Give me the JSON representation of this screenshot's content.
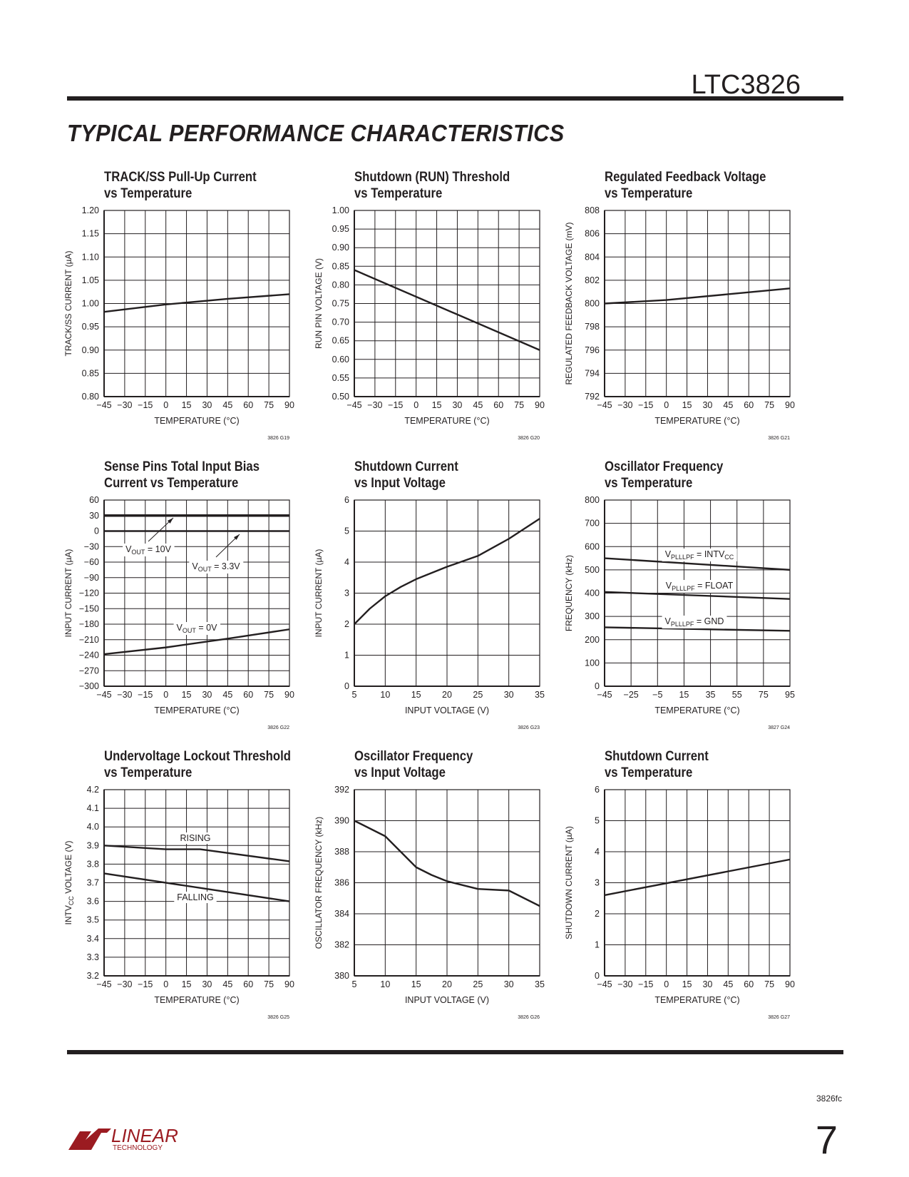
{
  "header": {
    "part_number": "LTC3826",
    "section_title": "TYPICAL PERFORMANCE CHARACTERISTICS"
  },
  "footer": {
    "doc_code": "3826fc",
    "page_number": "7",
    "logo_text": "LINEAR",
    "logo_subtext": "TECHNOLOGY",
    "logo_color": "#9b1b21"
  },
  "chart_data": [
    {
      "type": "line",
      "title": [
        "TRACK/SS Pull-Up Current",
        "vs Temperature"
      ],
      "xlabel": "TEMPERATURE (°C)",
      "ylabel": [
        {
          "t": "TRACK/SS CURRENT (µA)"
        }
      ],
      "figure_code": "3826 G19",
      "xlim": [
        -45,
        90
      ],
      "ylim": [
        0.8,
        1.2
      ],
      "xticks": [
        -45,
        -30,
        -15,
        0,
        15,
        30,
        45,
        60,
        75,
        90
      ],
      "yticks": [
        0.8,
        0.85,
        0.9,
        0.95,
        1.0,
        1.05,
        1.1,
        1.15,
        1.2
      ],
      "ydec": 2,
      "grid": true,
      "series": [
        {
          "name": "",
          "x": [
            -45,
            0,
            45,
            90
          ],
          "y": [
            0.982,
            0.998,
            1.01,
            1.02
          ]
        }
      ],
      "annotations": []
    },
    {
      "type": "line",
      "title": [
        "Shutdown (RUN) Threshold",
        "vs Temperature"
      ],
      "xlabel": "TEMPERATURE (°C)",
      "ylabel": [
        {
          "t": "RUN PIN VOLTAGE (V)"
        }
      ],
      "figure_code": "3826 G20",
      "xlim": [
        -45,
        90
      ],
      "ylim": [
        0.5,
        1.0
      ],
      "xticks": [
        -45,
        -30,
        -15,
        0,
        15,
        30,
        45,
        60,
        75,
        90
      ],
      "yticks": [
        0.5,
        0.55,
        0.6,
        0.65,
        0.7,
        0.75,
        0.8,
        0.85,
        0.9,
        0.95,
        1.0
      ],
      "ydec": 2,
      "grid": true,
      "series": [
        {
          "name": "",
          "x": [
            -45,
            90
          ],
          "y": [
            0.84,
            0.625
          ]
        }
      ],
      "annotations": []
    },
    {
      "type": "line",
      "title": [
        "Regulated Feedback Voltage",
        "vs Temperature"
      ],
      "xlabel": "TEMPERATURE (°C)",
      "ylabel": [
        {
          "t": "REGULATED FEEDBACK VOLTAGE (mV)"
        }
      ],
      "figure_code": "3826 G21",
      "xlim": [
        -45,
        90
      ],
      "ylim": [
        792,
        808
      ],
      "xticks": [
        -45,
        -30,
        -15,
        0,
        15,
        30,
        45,
        60,
        75,
        90
      ],
      "yticks": [
        792,
        794,
        796,
        798,
        800,
        802,
        804,
        806,
        808
      ],
      "ydec": 0,
      "grid": true,
      "series": [
        {
          "name": "",
          "x": [
            -45,
            0,
            45,
            90
          ],
          "y": [
            800,
            800.3,
            800.8,
            801.3
          ]
        }
      ],
      "annotations": []
    },
    {
      "type": "line",
      "title": [
        "Sense Pins Total Input Bias",
        "Current vs Temperature"
      ],
      "xlabel": "TEMPERATURE (°C)",
      "ylabel": [
        {
          "t": "INPUT CURRENT (µA)"
        }
      ],
      "figure_code": "3826 G22",
      "xlim": [
        -45,
        90
      ],
      "ylim": [
        -300,
        60
      ],
      "xticks": [
        -45,
        -30,
        -15,
        0,
        15,
        30,
        45,
        60,
        75,
        90
      ],
      "yticks": [
        -300,
        -270,
        -240,
        -210,
        -180,
        -150,
        -120,
        -90,
        -60,
        -30,
        0,
        30,
        60
      ],
      "ydec": 0,
      "grid": true,
      "series": [
        {
          "name": "VOUT = 10V",
          "x": [
            -45,
            90
          ],
          "y": [
            30,
            30
          ]
        },
        {
          "name": "VOUT = 3.3V",
          "x": [
            -45,
            90
          ],
          "y": [
            0,
            0
          ]
        },
        {
          "name": "VOUT = 0V",
          "x": [
            -45,
            0,
            45,
            90
          ],
          "y": [
            -238,
            -225,
            -208,
            -190
          ]
        }
      ],
      "annotations": [
        [
          {
            "t": "V"
          },
          {
            "t": "OUT",
            "sub": true
          },
          {
            "t": " = 10V"
          }
        ],
        [
          {
            "t": "V"
          },
          {
            "t": "OUT",
            "sub": true
          },
          {
            "t": " = 3.3V"
          }
        ],
        [
          {
            "t": "V"
          },
          {
            "t": "OUT",
            "sub": true
          },
          {
            "t": " = 0V"
          }
        ]
      ]
    },
    {
      "type": "line",
      "title": [
        "Shutdown Current",
        "vs Input Voltage"
      ],
      "xlabel": "INPUT VOLTAGE (V)",
      "ylabel": [
        {
          "t": "INPUT CURRENT (µA)"
        }
      ],
      "figure_code": "3826 G23",
      "xlim": [
        5,
        35
      ],
      "ylim": [
        0,
        6
      ],
      "xticks": [
        5,
        10,
        15,
        20,
        25,
        30,
        35
      ],
      "yticks": [
        0,
        1,
        2,
        3,
        4,
        5,
        6
      ],
      "ydec": 0,
      "grid": true,
      "series": [
        {
          "name": "",
          "x": [
            5,
            7.5,
            10,
            12.5,
            15,
            20,
            25,
            30,
            35
          ],
          "y": [
            2,
            2.5,
            2.9,
            3.2,
            3.45,
            3.85,
            4.2,
            4.75,
            5.4
          ]
        }
      ],
      "annotations": []
    },
    {
      "type": "line",
      "title": [
        "Oscillator Frequency",
        "vs Temperature"
      ],
      "xlabel": "TEMPERATURE (°C)",
      "ylabel": [
        {
          "t": "FREQUENCY (kHz)"
        }
      ],
      "figure_code": "3827 G24",
      "xlim": [
        -45,
        95
      ],
      "ylim": [
        0,
        800
      ],
      "xticks": [
        -45,
        -25,
        -5,
        15,
        35,
        55,
        75,
        95
      ],
      "yticks": [
        0,
        100,
        200,
        300,
        400,
        500,
        600,
        700,
        800
      ],
      "ydec": 0,
      "grid": true,
      "series": [
        {
          "name": "VPLLLPF = INTVCC",
          "x": [
            -45,
            95
          ],
          "y": [
            550,
            500
          ]
        },
        {
          "name": "VPLLLPF = FLOAT",
          "x": [
            -45,
            95
          ],
          "y": [
            405,
            375
          ]
        },
        {
          "name": "VPLLLPF = GND",
          "x": [
            -45,
            95
          ],
          "y": [
            253,
            238
          ]
        }
      ],
      "annotations": [
        [
          {
            "t": "V"
          },
          {
            "t": "PLLLPF",
            "sub": true
          },
          {
            "t": " = INTV"
          },
          {
            "t": "CC",
            "sub": true
          }
        ],
        [
          {
            "t": "V"
          },
          {
            "t": "PLLLPF",
            "sub": true
          },
          {
            "t": " = FLOAT"
          }
        ],
        [
          {
            "t": "V"
          },
          {
            "t": "PLLLPF",
            "sub": true
          },
          {
            "t": " = GND"
          }
        ]
      ]
    },
    {
      "type": "line",
      "title": [
        "Undervoltage Lockout Threshold",
        "vs Temperature"
      ],
      "xlabel": "TEMPERATURE (°C)",
      "ylabel": [
        {
          "t": "INTV"
        },
        {
          "t": "CC",
          "sub": true
        },
        {
          "t": " VOLTAGE (V)"
        }
      ],
      "figure_code": "3826 G25",
      "xlim": [
        -45,
        90
      ],
      "ylim": [
        3.2,
        4.2
      ],
      "xticks": [
        -45,
        -30,
        -15,
        0,
        15,
        30,
        45,
        60,
        75,
        90
      ],
      "yticks": [
        3.2,
        3.3,
        3.4,
        3.5,
        3.6,
        3.7,
        3.8,
        3.9,
        4.0,
        4.1,
        4.2
      ],
      "ydec": 1,
      "grid": true,
      "series": [
        {
          "name": "RISING",
          "x": [
            -45,
            0,
            25,
            90
          ],
          "y": [
            3.9,
            3.88,
            3.88,
            3.815
          ]
        },
        {
          "name": "FALLING",
          "x": [
            -45,
            90
          ],
          "y": [
            3.75,
            3.6
          ]
        }
      ],
      "annotations": [
        [
          {
            "t": "RISING"
          }
        ],
        [
          {
            "t": "FALLING"
          }
        ]
      ]
    },
    {
      "type": "line",
      "title": [
        "Oscillator Frequency",
        "vs Input Voltage"
      ],
      "xlabel": "INPUT VOLTAGE (V)",
      "ylabel": [
        {
          "t": "OSCILLATOR FREQUENCY (kHz)"
        }
      ],
      "figure_code": "3826 G26",
      "xlim": [
        5,
        35
      ],
      "ylim": [
        380,
        392
      ],
      "xticks": [
        5,
        10,
        15,
        20,
        25,
        30,
        35
      ],
      "yticks": [
        380,
        382,
        384,
        386,
        388,
        390,
        392
      ],
      "ydec": 0,
      "grid": true,
      "series": [
        {
          "name": "",
          "x": [
            5,
            10,
            15,
            17.5,
            20,
            25,
            30,
            35
          ],
          "y": [
            390,
            389,
            387,
            386.5,
            386.1,
            385.6,
            385.5,
            384.5
          ]
        }
      ],
      "annotations": []
    },
    {
      "type": "line",
      "title": [
        "Shutdown Current",
        "vs Temperature"
      ],
      "xlabel": "TEMPERATURE (°C)",
      "ylabel": [
        {
          "t": "SHUTDOWN CURRENT (µA)"
        }
      ],
      "figure_code": "3826 G27",
      "xlim": [
        -45,
        90
      ],
      "ylim": [
        0,
        6
      ],
      "xticks": [
        -45,
        -30,
        -15,
        0,
        15,
        30,
        45,
        60,
        75,
        90
      ],
      "yticks": [
        0,
        1,
        2,
        3,
        4,
        5,
        6
      ],
      "ydec": 0,
      "grid": true,
      "series": [
        {
          "name": "",
          "x": [
            -45,
            90
          ],
          "y": [
            2.6,
            3.75
          ]
        }
      ],
      "annotations": []
    }
  ]
}
